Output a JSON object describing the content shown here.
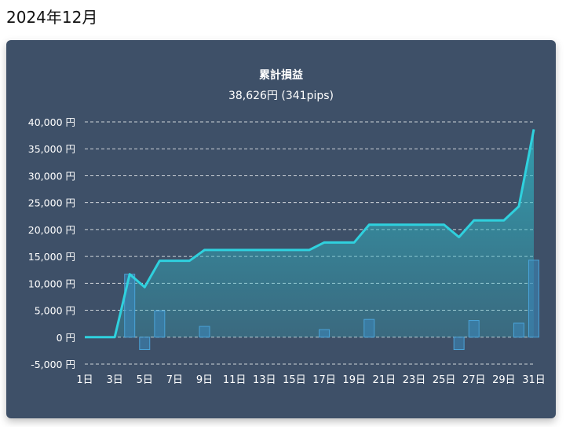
{
  "page": {
    "title": "2024年12月"
  },
  "chart_data": {
    "type": "line",
    "title": "累計損益",
    "subtitle": "38,626円 (341pips)",
    "x": [
      "1日",
      "2日",
      "3日",
      "4日",
      "5日",
      "6日",
      "7日",
      "8日",
      "9日",
      "10日",
      "11日",
      "12日",
      "13日",
      "14日",
      "15日",
      "16日",
      "17日",
      "18日",
      "19日",
      "20日",
      "21日",
      "22日",
      "23日",
      "24日",
      "25日",
      "26日",
      "27日",
      "28日",
      "29日",
      "30日",
      "31日"
    ],
    "x_tick_labels": [
      "1日",
      "3日",
      "5日",
      "7日",
      "9日",
      "11日",
      "13日",
      "15日",
      "17日",
      "19日",
      "21日",
      "23日",
      "25日",
      "27日",
      "29日",
      "31日"
    ],
    "y_tick_labels": [
      "40,000 円",
      "35,000 円",
      "30,000 円",
      "25,000 円",
      "20,000 円",
      "15,000 円",
      "10,000 円",
      "5,000 円",
      "0 円",
      "-5,000 円"
    ],
    "ylim": [
      -5000,
      40000
    ],
    "grid": true,
    "series": [
      {
        "kind": "line",
        "color": "#2fd1de",
        "fill": true,
        "values": [
          0,
          0,
          0,
          11700,
          9300,
          14200,
          14200,
          14200,
          16200,
          16200,
          16200,
          16200,
          16200,
          16200,
          16200,
          16200,
          17600,
          17600,
          17600,
          20900,
          20900,
          20900,
          20900,
          20900,
          20900,
          18600,
          21700,
          21700,
          21700,
          24300,
          38626
        ]
      },
      {
        "kind": "bar",
        "color": "#3a86b8",
        "values": [
          0,
          0,
          0,
          11700,
          -2300,
          4900,
          0,
          0,
          2000,
          0,
          0,
          0,
          0,
          0,
          0,
          0,
          1400,
          0,
          0,
          3300,
          0,
          0,
          0,
          0,
          0,
          -2300,
          3100,
          0,
          0,
          2600,
          14300
        ]
      }
    ]
  }
}
